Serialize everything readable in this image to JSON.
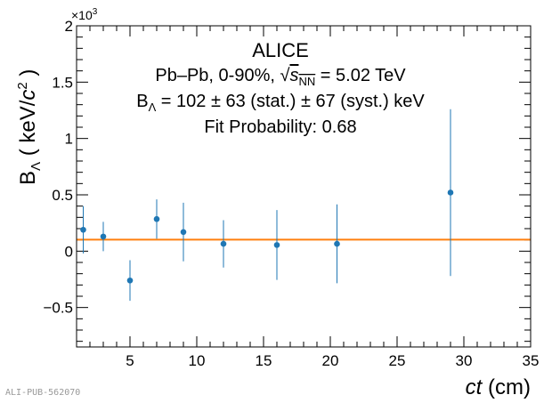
{
  "chart_data": {
    "type": "scatter",
    "experiment": "ALICE",
    "collision_prefix": "Pb–Pb, 0-90%, ",
    "energy_value": " = 5.02 TeV",
    "result_prefix": " = 102 ± 63 (stat.) ± 67 (syst.) keV",
    "fit_probability": "Fit Probability: 0.68",
    "xlabel_unit": " (cm)",
    "ylabel_unit": " ( keV/",
    "y_multiplier": "×10",
    "y_multiplier_exp": "3",
    "xlim": [
      1.0,
      35.0
    ],
    "ylim": [
      -0.85,
      2.0
    ],
    "x_ticks": [
      5,
      10,
      15,
      20,
      25,
      30,
      35
    ],
    "y_ticks": [
      -0.5,
      0,
      0.5,
      1,
      1.5,
      2
    ],
    "y_tick_labels": [
      "−0.5",
      "0",
      "0.5",
      "1",
      "1.5",
      "2"
    ],
    "points": [
      {
        "x": 1.5,
        "y": 0.19,
        "err": 0.21
      },
      {
        "x": 3.0,
        "y": 0.13,
        "err": 0.13
      },
      {
        "x": 5.0,
        "y": -0.26,
        "err": 0.18
      },
      {
        "x": 7.0,
        "y": 0.285,
        "err": 0.175
      },
      {
        "x": 9.0,
        "y": 0.17,
        "err": 0.26
      },
      {
        "x": 12.0,
        "y": 0.065,
        "err": 0.21
      },
      {
        "x": 16.0,
        "y": 0.055,
        "err": 0.31
      },
      {
        "x": 20.5,
        "y": 0.065,
        "err": 0.35
      },
      {
        "x": 29.0,
        "y": 0.52,
        "err": 0.74
      }
    ],
    "fit_value": 0.102,
    "marker_color": "#1f77b4",
    "fit_color": "#ff7f0e",
    "watermark": "ALI-PUB-562070"
  }
}
